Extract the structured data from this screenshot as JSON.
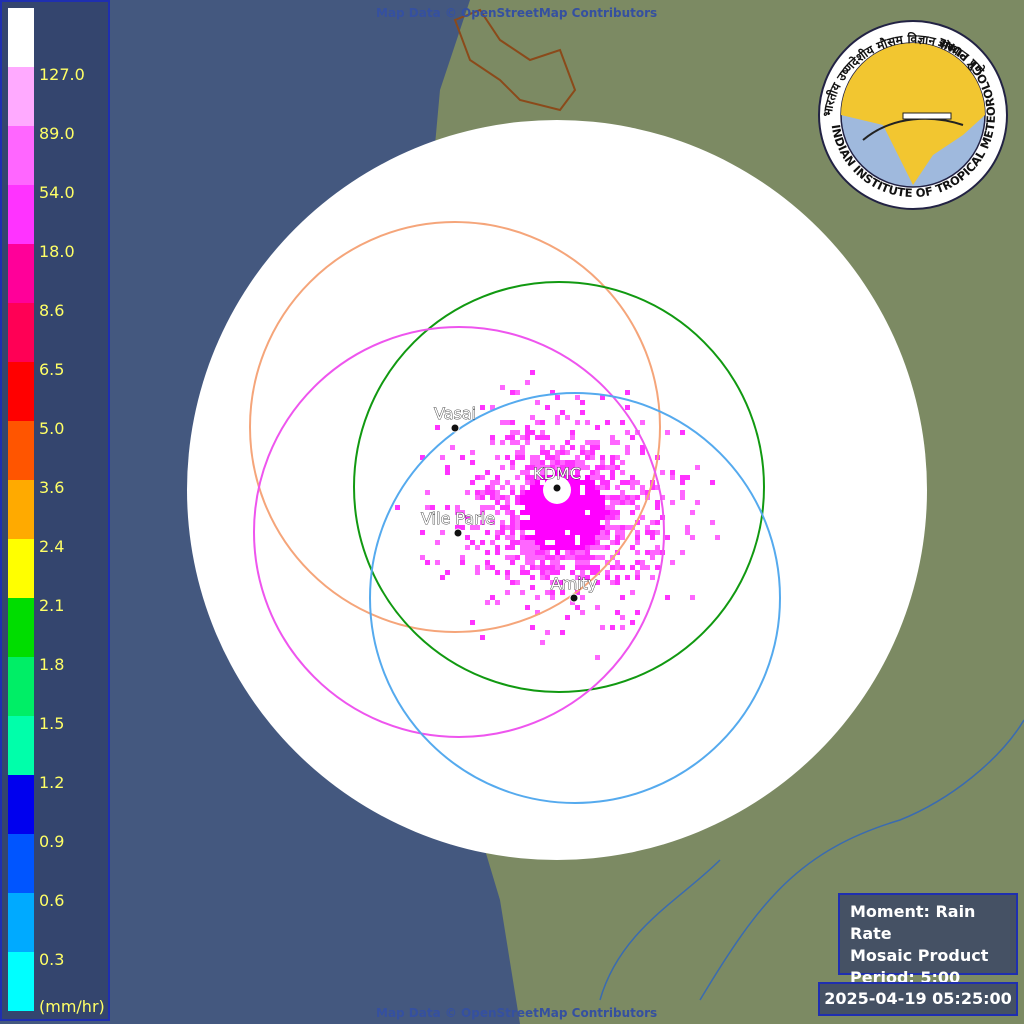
{
  "legend": {
    "top_color": "#ffffff",
    "items": [
      {
        "label": "127.0",
        "color": "#ffaaff"
      },
      {
        "label": "89.0",
        "color": "#ff66ff"
      },
      {
        "label": "54.0",
        "color": "#ff33ff"
      },
      {
        "label": "18.0",
        "color": "#ff0099"
      },
      {
        "label": "8.6",
        "color": "#ff0055"
      },
      {
        "label": "6.5",
        "color": "#ff0000"
      },
      {
        "label": "5.0",
        "color": "#ff5500"
      },
      {
        "label": "3.6",
        "color": "#ffaa00"
      },
      {
        "label": "2.4",
        "color": "#ffff00"
      },
      {
        "label": "2.1",
        "color": "#00dd00"
      },
      {
        "label": "1.8",
        "color": "#00ee66"
      },
      {
        "label": "1.5",
        "color": "#00ffaa"
      },
      {
        "label": "1.2",
        "color": "#0000ee"
      },
      {
        "label": "0.9",
        "color": "#0055ff"
      },
      {
        "label": "0.6",
        "color": "#00aaff"
      },
      {
        "label": "0.3",
        "color": "#00ffff"
      }
    ],
    "unit": "(mm/hr)"
  },
  "stations": [
    "Vasai",
    "KDMC",
    "Vile Parle",
    "Amity"
  ],
  "info": [
    "Moment: Rain Rate",
    "Mosaic Product",
    "Period: 5:00"
  ],
  "timestamp": "2025-04-19 05:25:00",
  "attribution_top": "Map Data © OpenStreetMap Contributors",
  "attribution_bottom": "Map Data © OpenStreetMap Contributors",
  "logo": {
    "english": "INDIAN INSTITUTE OF TROPICAL METEOROLOGY PUNE",
    "hindi": "भारतीय उष्णदेशीय मौसम विज्ञान संस्थान पुणे"
  }
}
